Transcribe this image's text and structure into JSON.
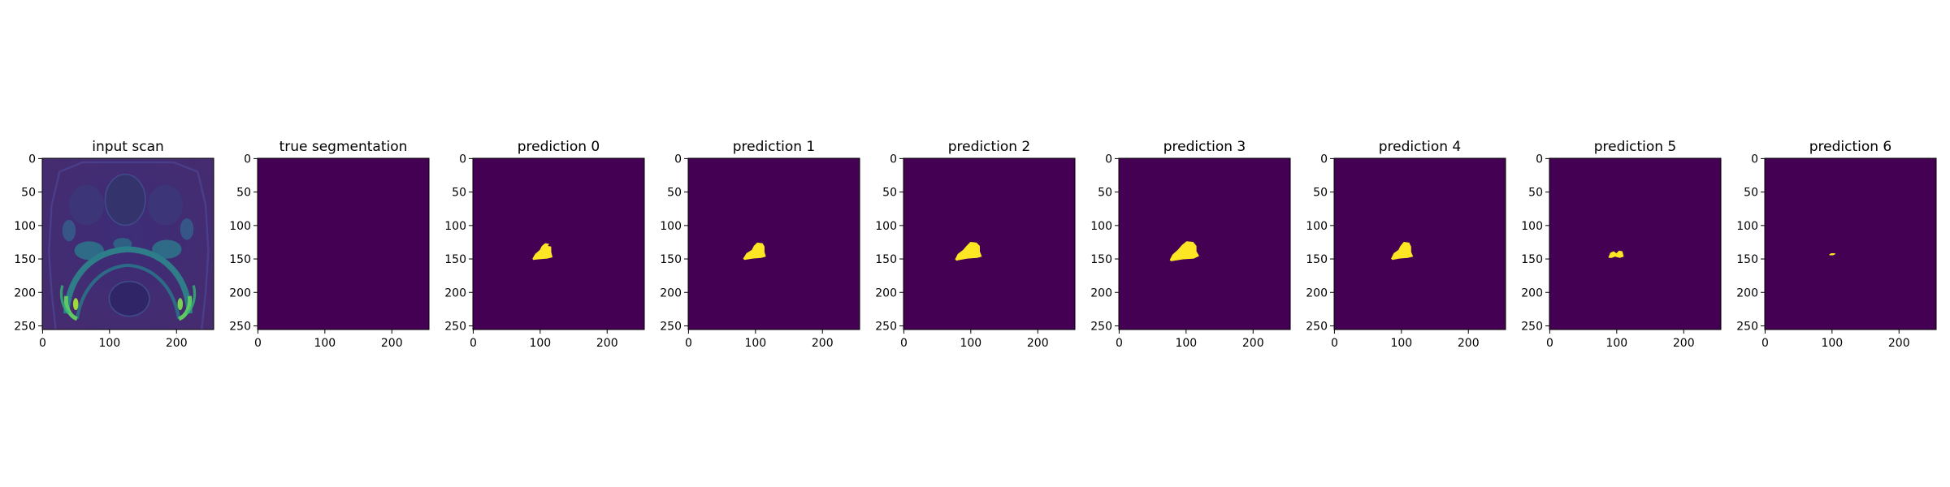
{
  "figure": {
    "panels": [
      {
        "title": "input scan",
        "kind": "scan"
      },
      {
        "title": "true segmentation",
        "kind": "empty"
      },
      {
        "title": "prediction 0",
        "kind": "blob",
        "blob": "p0"
      },
      {
        "title": "prediction 1",
        "kind": "blob",
        "blob": "p1"
      },
      {
        "title": "prediction 2",
        "kind": "blob",
        "blob": "p2"
      },
      {
        "title": "prediction 3",
        "kind": "blob",
        "blob": "p3"
      },
      {
        "title": "prediction 4",
        "kind": "blob",
        "blob": "p4"
      },
      {
        "title": "prediction 5",
        "kind": "blob",
        "blob": "p5"
      },
      {
        "title": "prediction 6",
        "kind": "blob",
        "blob": "p6"
      }
    ],
    "axes": {
      "x_ticks": [
        "0",
        "100",
        "200"
      ],
      "y_ticks": [
        "0",
        "50",
        "100",
        "150",
        "200",
        "250"
      ]
    },
    "colors": {
      "background": "#440154",
      "mask": "#fde725",
      "scan_dark": "#3b2a72",
      "scan_mid": "#31688e",
      "scan_bright": "#35b779"
    }
  }
}
